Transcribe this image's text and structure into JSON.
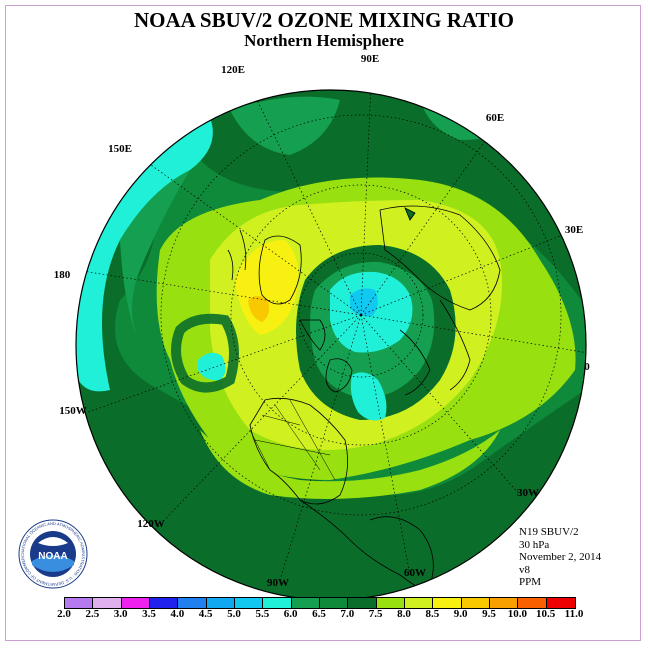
{
  "header": {
    "title": "NOAA SBUV/2 OZONE MIXING RATIO",
    "subtitle": "Northern Hemisphere"
  },
  "map": {
    "longitude_labels": [
      "90E",
      "60E",
      "30E",
      "0",
      "30W",
      "60W",
      "90W",
      "120W",
      "150W",
      "180",
      "150E",
      "120E"
    ],
    "projection": "north-polar-stereographic"
  },
  "info": {
    "satellite": "N19 SBUV/2",
    "level": "30 hPa",
    "date": "November 2, 2014",
    "version": "v8",
    "units": "PPM"
  },
  "legend": {
    "ticks": [
      "2.0",
      "2.5",
      "3.0",
      "3.5",
      "4.0",
      "4.5",
      "5.0",
      "5.5",
      "6.0",
      "6.5",
      "7.0",
      "7.5",
      "8.0",
      "8.5",
      "9.0",
      "9.5",
      "10.0",
      "10.5",
      "11.0"
    ],
    "colors": [
      "#b57aef",
      "#e0b0ee",
      "#ee22ee",
      "#2222ee",
      "#2080f0",
      "#10a8f0",
      "#10c8f0",
      "#20f0d8",
      "#14a050",
      "#0e8a3a",
      "#0a6e2a",
      "#98e010",
      "#d0f020",
      "#f8f010",
      "#f8c800",
      "#f8a000",
      "#f86000",
      "#ee0000",
      "#8a5a3a"
    ]
  },
  "logo": {
    "text": "NOAA",
    "ring_text": "NATIONAL OCEANIC AND ATMOSPHERIC ADMINISTRATION · U.S. DEPARTMENT OF COMMERCE"
  }
}
